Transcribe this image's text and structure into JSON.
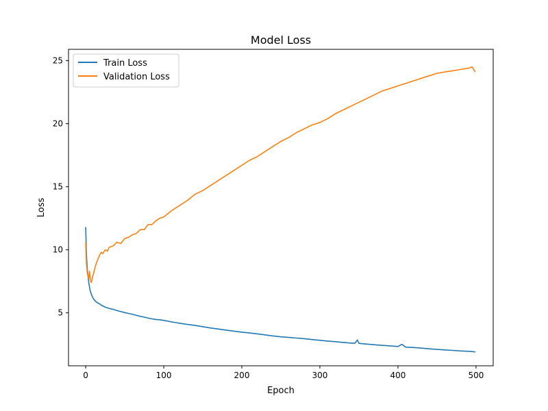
{
  "chart_data": {
    "type": "line",
    "title": "Model Loss",
    "xlabel": "Epoch",
    "ylabel": "Loss",
    "xlim": [
      -22,
      522
    ],
    "ylim": [
      0.8,
      25.9
    ],
    "xticks": [
      0,
      100,
      200,
      300,
      400,
      500
    ],
    "yticks": [
      5,
      10,
      15,
      20,
      25
    ],
    "grid": false,
    "legend_position": "top-left",
    "series": [
      {
        "name": "Train Loss",
        "color": "#1f77b4",
        "x": [
          0,
          1,
          2,
          3,
          4,
          5,
          6,
          8,
          10,
          12,
          15,
          18,
          20,
          25,
          30,
          35,
          40,
          45,
          50,
          55,
          60,
          65,
          70,
          75,
          80,
          85,
          90,
          95,
          100,
          110,
          120,
          130,
          140,
          150,
          160,
          170,
          180,
          190,
          200,
          210,
          220,
          230,
          240,
          250,
          260,
          270,
          280,
          290,
          300,
          310,
          320,
          330,
          340,
          345,
          348,
          350,
          355,
          360,
          370,
          380,
          390,
          400,
          405,
          410,
          420,
          430,
          440,
          450,
          460,
          470,
          480,
          490,
          495,
          499
        ],
        "y": [
          11.8,
          9.6,
          8.5,
          7.9,
          7.4,
          7.0,
          6.7,
          6.35,
          6.1,
          5.95,
          5.8,
          5.7,
          5.6,
          5.45,
          5.35,
          5.28,
          5.18,
          5.1,
          5.02,
          4.95,
          4.88,
          4.8,
          4.72,
          4.66,
          4.58,
          4.52,
          4.47,
          4.45,
          4.4,
          4.28,
          4.18,
          4.08,
          4.0,
          3.9,
          3.8,
          3.72,
          3.63,
          3.55,
          3.47,
          3.4,
          3.33,
          3.25,
          3.17,
          3.1,
          3.05,
          3.0,
          2.95,
          2.88,
          2.82,
          2.76,
          2.71,
          2.65,
          2.6,
          2.6,
          2.85,
          2.58,
          2.55,
          2.52,
          2.47,
          2.42,
          2.38,
          2.33,
          2.5,
          2.28,
          2.25,
          2.2,
          2.15,
          2.1,
          2.06,
          2.02,
          1.98,
          1.95,
          1.93,
          1.9
        ]
      },
      {
        "name": "Validation Loss",
        "color": "#ff7f0e",
        "x": [
          0,
          1,
          2,
          3,
          4,
          5,
          6,
          7,
          8,
          9,
          10,
          12,
          14,
          16,
          18,
          20,
          22,
          25,
          28,
          30,
          35,
          40,
          45,
          50,
          55,
          60,
          65,
          70,
          75,
          80,
          85,
          90,
          95,
          100,
          110,
          120,
          130,
          140,
          150,
          160,
          170,
          180,
          190,
          200,
          210,
          220,
          230,
          240,
          250,
          260,
          270,
          280,
          290,
          300,
          310,
          320,
          330,
          340,
          350,
          360,
          370,
          380,
          390,
          400,
          410,
          420,
          430,
          440,
          450,
          460,
          470,
          480,
          490,
          495,
          499
        ],
        "y": [
          10.6,
          8.9,
          8.2,
          7.9,
          7.7,
          8.3,
          7.6,
          7.4,
          7.6,
          7.9,
          8.1,
          8.6,
          9.0,
          9.3,
          9.6,
          9.8,
          9.7,
          10.0,
          9.9,
          10.2,
          10.3,
          10.6,
          10.5,
          10.9,
          11.0,
          11.2,
          11.3,
          11.6,
          11.6,
          12.0,
          12.0,
          12.3,
          12.5,
          12.6,
          13.1,
          13.5,
          13.9,
          14.4,
          14.7,
          15.1,
          15.5,
          15.9,
          16.3,
          16.7,
          17.1,
          17.4,
          17.8,
          18.2,
          18.6,
          18.9,
          19.3,
          19.6,
          19.9,
          20.1,
          20.4,
          20.8,
          21.1,
          21.4,
          21.7,
          22.0,
          22.3,
          22.6,
          22.8,
          23.0,
          23.2,
          23.4,
          23.6,
          23.8,
          24.0,
          24.1,
          24.2,
          24.3,
          24.4,
          24.5,
          24.1
        ]
      }
    ]
  }
}
